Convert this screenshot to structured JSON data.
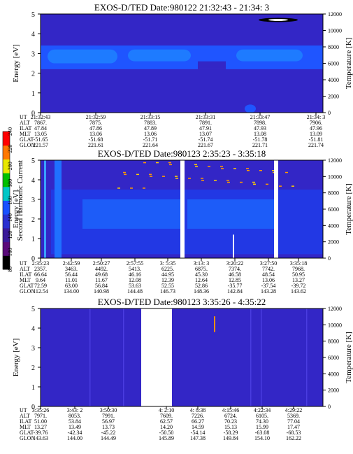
{
  "panels": [
    {
      "title": "EXOS-D/TED   Date:980122  21:32:43 - 21:34: 3",
      "ylabel_left": "Energy [eV]",
      "ylabel_right": "Temperature [K]",
      "left_ticks": [
        "0",
        "1",
        "2",
        "3",
        "4",
        "5"
      ],
      "right_ticks": [
        "0",
        "2000",
        "4000",
        "6000",
        "8000",
        "10000",
        "12000"
      ],
      "table_labels": [
        "UT",
        "ALT",
        "ILAT",
        "MLT",
        "GLAT",
        "GLON"
      ],
      "columns": [
        [
          "21:32:43",
          "7867.",
          "47.84",
          "13.05",
          "-51.65",
          "221.57"
        ],
        [
          "21:32:59",
          "7875.",
          "47.86",
          "13.06",
          "-51.68",
          "221.61"
        ],
        [
          "21:33:15",
          "7883.",
          "47.89",
          "13.06",
          "-51.71",
          "221.64"
        ],
        [
          "21:33:31",
          "7891.",
          "47.91",
          "13.07",
          "-51.74",
          "221.67"
        ],
        [
          "21:33:47",
          "7898.",
          "47.93",
          "13.08",
          "-51.78",
          "221.71"
        ],
        [
          "21:34: 3",
          "7906.",
          "47.96",
          "13.09",
          "-51.81",
          "221.74"
        ]
      ]
    },
    {
      "title": "EXOS-D/TED   Date:980123  2:35:23 - 3:35:18",
      "ylabel_left": "Energy [eV]",
      "ylabel_right": "Temperature [K]",
      "left_ticks": [
        "0",
        "1",
        "2",
        "3",
        "4",
        "5"
      ],
      "right_ticks": [
        "0",
        "2000",
        "4000",
        "6000",
        "8000",
        "10000",
        "12000"
      ],
      "table_labels": [
        "UT",
        "ALT",
        "ILAT",
        "MLT",
        "GLAT",
        "GLON"
      ],
      "columns": [
        [
          "2:35:23",
          "2357.",
          "66.64",
          "9.64",
          "72.59",
          "112.54"
        ],
        [
          "2:42:59",
          "3463.",
          "56.44",
          "11.01",
          "63.00",
          "134.00"
        ],
        [
          "2:50:27",
          "4492.",
          "49.68",
          "11.67",
          "56.84",
          "140.98"
        ],
        [
          "2:57:55",
          "5413.",
          "46.16",
          "12.08",
          "53.63",
          "144.48"
        ],
        [
          "3: 5:35",
          "6225.",
          "44.95",
          "12.39",
          "52.55",
          "146.73"
        ],
        [
          "3:13: 3",
          "6875.",
          "45.30",
          "12.64",
          "52.86",
          "148.36"
        ],
        [
          "3:20:22",
          "7374.",
          "46.58",
          "12.85",
          "-35.77",
          "142.84"
        ],
        [
          "3:27:50",
          "7742.",
          "48.54",
          "13.06",
          "-37.54",
          "143.28"
        ],
        [
          "3:35:18",
          "7968.",
          "50.95",
          "13.27",
          "-39.72",
          "143.62"
        ]
      ]
    },
    {
      "title": "EXOS-D/TED   Date:980123  3:35:26 - 4:35:22",
      "ylabel_left": "Energy [eV]",
      "ylabel_right": "Temperature [K]",
      "left_ticks": [
        "0",
        "1",
        "2",
        "3",
        "4",
        "5"
      ],
      "right_ticks": [
        "0",
        "2000",
        "4000",
        "6000",
        "8000",
        "10000",
        "12000"
      ],
      "table_labels": [
        "UT",
        "ALT",
        "ILAT",
        "MLT",
        "GLAT",
        "GLON"
      ],
      "columns": [
        [
          "3:35:26",
          "7971.",
          "51.00",
          "13.27",
          "-39.76",
          "143.63"
        ],
        [
          "3:43: 2",
          "8053.",
          "53.84",
          "13.49",
          "-42.34",
          "144.00"
        ],
        [
          "3:50:30",
          "7991.",
          "56.97",
          "13.73",
          "-45.22",
          "144.49"
        ],
        [
          "4: 2:10",
          "7609.",
          "62.57",
          "14.20",
          "-50.50",
          "145.89"
        ],
        [
          "4: 8:38",
          "7226.",
          "66.27",
          "14.59",
          "-54.14",
          "147.38"
        ],
        [
          "4:15:46",
          "6724.",
          "70.23",
          "15.13",
          "-58.29",
          "149.84"
        ],
        [
          "4:22:34",
          "6105.",
          "74.30",
          "15.99",
          "-63.08",
          "154.10"
        ],
        [
          "4:29:22",
          "5369.",
          "77.04",
          "17.47",
          "-68.53",
          "162.22"
        ]
      ]
    }
  ],
  "colorbar": {
    "label": "Second Harmonic Current",
    "ticks": [
      "80",
      "100",
      "120",
      "140",
      "160",
      "180",
      "200",
      "220",
      "240"
    ]
  },
  "chart_data": {
    "type": "heatmap",
    "spectrograms": [
      {
        "title": "EXOS-D/TED   Date:980122  21:32:43 - 21:34: 3",
        "x_time_range": [
          "21:32:43",
          "21:34: 3"
        ],
        "ylim_energy_eV": [
          0,
          5
        ],
        "ylim_temperature_K": [
          0,
          12000
        ],
        "feature": "band of enhanced current between about 2.2 and 3.4 eV"
      },
      {
        "title": "EXOS-D/TED   Date:980123  2:35:23 - 3:35:18",
        "x_time_range": [
          "2:35:23",
          "3:35:18"
        ],
        "ylim_energy_eV": [
          0,
          5
        ],
        "ylim_temperature_K": [
          0,
          12000
        ],
        "data_gaps": [
          "3: 5:35",
          "3:27:50"
        ]
      },
      {
        "title": "EXOS-D/TED   Date:980123  3:35:26 - 4:35:22",
        "x_time_range": [
          "3:35:26",
          "4:35:22"
        ],
        "ylim_energy_eV": [
          0,
          5
        ],
        "ylim_temperature_K": [
          0,
          12000
        ],
        "data_gaps": [
          "3:50:30",
          "4: 2:10"
        ]
      }
    ],
    "colorbar": {
      "min": 80,
      "max": 240,
      "label": "Second Harmonic Current"
    },
    "colors": [
      "#000000",
      "#5a0a7a",
      "#3a1a9a",
      "#2a30d0",
      "#1850ff",
      "#00c8c8",
      "#00c000",
      "#e8e800",
      "#ff7800",
      "#ff0000"
    ]
  }
}
